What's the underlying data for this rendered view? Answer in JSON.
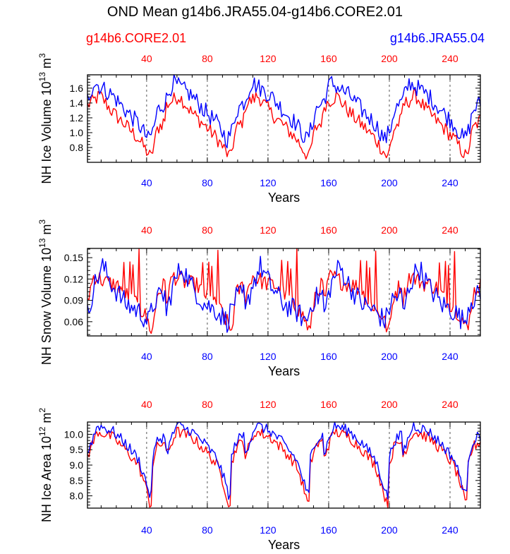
{
  "title": "OND Mean g14b6.JRA55.04-g14b6.CORE2.01",
  "legend_left": "g14b6.CORE2.01",
  "legend_right": "g14b6.JRA55.04",
  "colors": {
    "core": "#ff0000",
    "jra": "#0000ff",
    "axis": "#000000"
  },
  "chart_data": [
    {
      "type": "line",
      "ylabel": "NH Ice Volume 10^13 m^3",
      "ylabel_main": "NH Ice Volume 10",
      "ylabel_exp1": "13",
      "ylabel_unit": " m",
      "ylabel_exp2": "3",
      "xlabel": "Years",
      "xlim": [
        1,
        260
      ],
      "ylim": [
        0.6,
        1.78
      ],
      "yticks": [
        0.8,
        1.0,
        1.2,
        1.4,
        1.6
      ],
      "ytick_labels": [
        "0.8",
        "1.0",
        "1.2",
        "1.4",
        "1.6"
      ],
      "xticks": [
        40,
        80,
        120,
        160,
        200,
        240
      ],
      "xtick_labels": [
        "40",
        "80",
        "120",
        "160",
        "200",
        "240"
      ],
      "grid_x": true,
      "series": [
        {
          "name": "g14b6.CORE2.01",
          "color": "#ff0000",
          "cycle_points": [
            [
              0,
              1.37
            ],
            [
              10,
              1.5
            ],
            [
              20,
              1.27
            ],
            [
              30,
              1.1
            ],
            [
              40,
              0.92
            ],
            [
              50,
              0.66
            ],
            [
              52,
              0.82
            ],
            [
              55,
              1.05
            ],
            [
              62,
              1.2
            ]
          ],
          "mean": 0.97,
          "amp": 0.22,
          "noise": 0.1
        },
        {
          "name": "g14b6.JRA55.04",
          "color": "#0000ff",
          "cycle_points": [
            [
              0,
              1.45
            ],
            [
              5,
              1.68
            ],
            [
              20,
              1.5
            ],
            [
              30,
              1.3
            ],
            [
              40,
              1.12
            ],
            [
              48,
              0.9
            ],
            [
              52,
              1.05
            ],
            [
              55,
              1.3
            ],
            [
              62,
              1.43
            ]
          ],
          "mean": 1.15,
          "amp": 0.28,
          "noise": 0.12
        }
      ]
    },
    {
      "type": "line",
      "ylabel": "NH Snow Volume 10^13 m^3",
      "ylabel_main": "NH Snow Volume 10",
      "ylabel_exp1": "13",
      "ylabel_unit": " m",
      "ylabel_exp2": "3",
      "xlabel": "Years",
      "xlim": [
        1,
        260
      ],
      "ylim": [
        0.04,
        0.163
      ],
      "yticks": [
        0.06,
        0.09,
        0.12,
        0.15
      ],
      "ytick_labels": [
        "0.06",
        "0.09",
        "0.12",
        "0.15"
      ],
      "xticks": [
        40,
        80,
        120,
        160,
        200,
        240
      ],
      "xtick_labels": [
        "40",
        "80",
        "120",
        "160",
        "200",
        "240"
      ],
      "grid_x": true,
      "series": [
        {
          "name": "g14b6.CORE2.01",
          "color": "#ff0000",
          "cycle_points": [
            [
              0,
              0.09
            ],
            [
              5,
              0.125
            ],
            [
              15,
              0.115
            ],
            [
              25,
              0.11
            ],
            [
              35,
              0.09
            ],
            [
              45,
              0.07
            ],
            [
              51,
              0.045
            ],
            [
              55,
              0.1
            ],
            [
              62,
              0.115
            ]
          ],
          "spikes": [
            [
              29,
              0.147
            ],
            [
              33,
              0.148
            ],
            [
              36,
              0.14
            ],
            [
              40,
              0.163
            ]
          ],
          "mean": 0.1,
          "amp": 0.03,
          "noise": 0.012
        },
        {
          "name": "g14b6.JRA55.04",
          "color": "#0000ff",
          "cycle_points": [
            [
              0,
              0.07
            ],
            [
              5,
              0.11
            ],
            [
              12,
              0.138
            ],
            [
              20,
              0.11
            ],
            [
              30,
              0.085
            ],
            [
              40,
              0.075
            ],
            [
              48,
              0.06
            ],
            [
              53,
              0.09
            ],
            [
              62,
              0.1
            ]
          ],
          "mean": 0.09,
          "amp": 0.025,
          "noise": 0.016
        }
      ]
    },
    {
      "type": "line",
      "ylabel": "NH Ice Area 10^12 m^2",
      "ylabel_main": "NH Ice Area 10",
      "ylabel_exp1": "12",
      "ylabel_unit": " m",
      "ylabel_exp2": "2",
      "xlabel": "Years",
      "xlim": [
        1,
        260
      ],
      "ylim": [
        7.6,
        10.4
      ],
      "yticks": [
        8.0,
        8.5,
        9.0,
        9.5,
        10.0
      ],
      "ytick_labels": [
        "8.0",
        "8.5",
        "9.0",
        "9.5",
        "10.0"
      ],
      "xticks": [
        40,
        80,
        120,
        160,
        200,
        240
      ],
      "xtick_labels": [
        "40",
        "80",
        "120",
        "160",
        "200",
        "240"
      ],
      "grid_x": true,
      "series": [
        {
          "name": "g14b6.CORE2.01",
          "color": "#ff0000",
          "cycle_points": [
            [
              0,
              9.3
            ],
            [
              8,
              10.1
            ],
            [
              20,
              9.9
            ],
            [
              30,
              9.5
            ],
            [
              40,
              9.0
            ],
            [
              45,
              8.4
            ],
            [
              50,
              7.6
            ],
            [
              51,
              9.0
            ],
            [
              55,
              9.6
            ],
            [
              62,
              9.8
            ]
          ],
          "mean": 9.3,
          "amp": 0.4,
          "noise": 0.18
        },
        {
          "name": "g14b6.JRA55.04",
          "color": "#0000ff",
          "cycle_points": [
            [
              0,
              9.4
            ],
            [
              8,
              10.3
            ],
            [
              20,
              10.1
            ],
            [
              30,
              9.7
            ],
            [
              40,
              9.2
            ],
            [
              45,
              8.6
            ],
            [
              50,
              7.9
            ],
            [
              51,
              9.2
            ],
            [
              55,
              9.8
            ],
            [
              62,
              10.0
            ]
          ],
          "mean": 9.45,
          "amp": 0.4,
          "noise": 0.18
        }
      ]
    }
  ]
}
